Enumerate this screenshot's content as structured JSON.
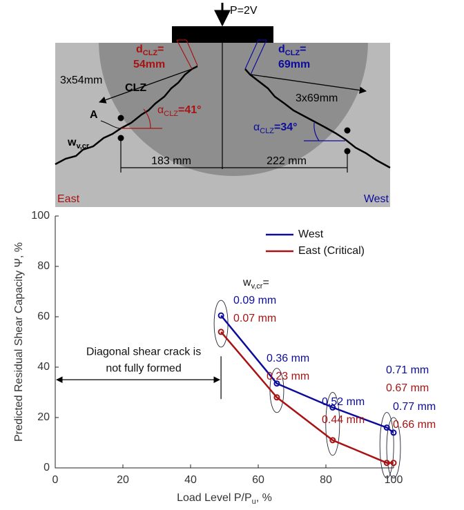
{
  "diagram": {
    "load": "P=2V",
    "zone": "CLZ",
    "point": "A",
    "crack_width": {
      "main": "w",
      "sub": "v,cr"
    },
    "east": {
      "side": "East",
      "d": {
        "main": "d",
        "sub": "CLZ",
        "eq": "=",
        "value": "54mm"
      },
      "reach": "3x54mm",
      "angle": {
        "main": "α",
        "sub": "CLZ",
        "value": "=41°"
      },
      "span": "183 mm"
    },
    "west": {
      "side": "West",
      "d": {
        "main": "d",
        "sub": "CLZ",
        "eq": "=",
        "value": "69mm"
      },
      "reach": "3x69mm",
      "angle": {
        "main": "α",
        "sub": "CLZ",
        "value": "=34°"
      },
      "span": "222 mm"
    }
  },
  "chart_data": {
    "type": "line",
    "ylabel": "Predicted Residual Shear Capacity Ψ, %",
    "xlabel": {
      "main": "Load Level P/P",
      "sub": "u",
      "tail": ", %"
    },
    "x": [
      49,
      65.5,
      82,
      98,
      100
    ],
    "series": [
      {
        "name": "West",
        "color": "#0c0c9c",
        "values": [
          60.5,
          33.5,
          24,
          16,
          14
        ],
        "point_labels": [
          "0.09 mm",
          "0.36 mm",
          "0.52 mm",
          "0.71 mm",
          "0.77 mm"
        ]
      },
      {
        "name": "East (Critical)",
        "color": "#a81212",
        "values": [
          54,
          28,
          11,
          2,
          2
        ],
        "point_labels": [
          "0.07 mm",
          "0.23 mm",
          "0.44 mm",
          "0.67 mm",
          "0.66 mm"
        ]
      }
    ],
    "point_label_title": {
      "main": "w",
      "sub": "v,cr",
      "tail": "="
    },
    "annotation": {
      "lines": [
        "Diagonal shear crack is",
        "not fully formed"
      ],
      "x": [
        0,
        49
      ],
      "y": 35
    },
    "xlim": [
      0,
      100
    ],
    "ylim": [
      0,
      100
    ],
    "xticks": [
      0,
      20,
      40,
      60,
      80,
      100
    ],
    "yticks": [
      0,
      20,
      40,
      60,
      80,
      100
    ],
    "legend": "upper right"
  }
}
